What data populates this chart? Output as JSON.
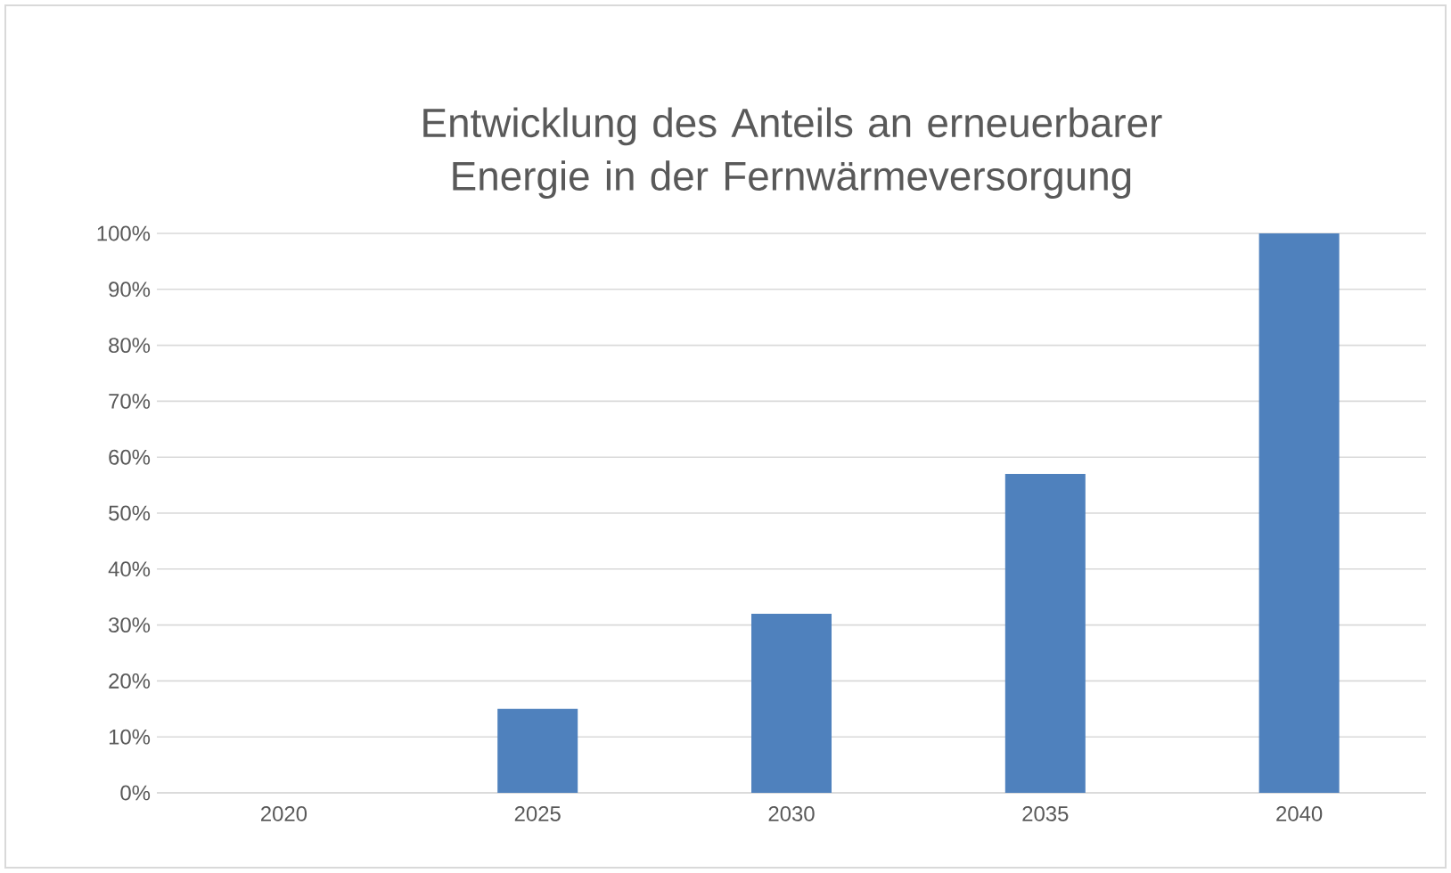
{
  "chart_data": {
    "type": "bar",
    "title": "Entwicklung des Anteils an erneuerbarer Energie in der Fernwärmeversorgung",
    "categories": [
      "2020",
      "2025",
      "2030",
      "2035",
      "2040"
    ],
    "values": [
      0,
      0.15,
      0.32,
      0.57,
      1.0
    ],
    "color": "#4f81bd",
    "ylim": [
      0,
      1
    ],
    "yticks": [
      {
        "value": 0,
        "label": "0%"
      },
      {
        "value": 0.1,
        "label": "10%"
      },
      {
        "value": 0.2,
        "label": "20%"
      },
      {
        "value": 0.3,
        "label": "30%"
      },
      {
        "value": 0.4,
        "label": "40%"
      },
      {
        "value": 0.5,
        "label": "50%"
      },
      {
        "value": 0.6,
        "label": "60%"
      },
      {
        "value": 0.7,
        "label": "70%"
      },
      {
        "value": 0.8,
        "label": "80%"
      },
      {
        "value": 0.9,
        "label": "90%"
      },
      {
        "value": 1.0,
        "label": "100%"
      }
    ],
    "grid": "y"
  }
}
